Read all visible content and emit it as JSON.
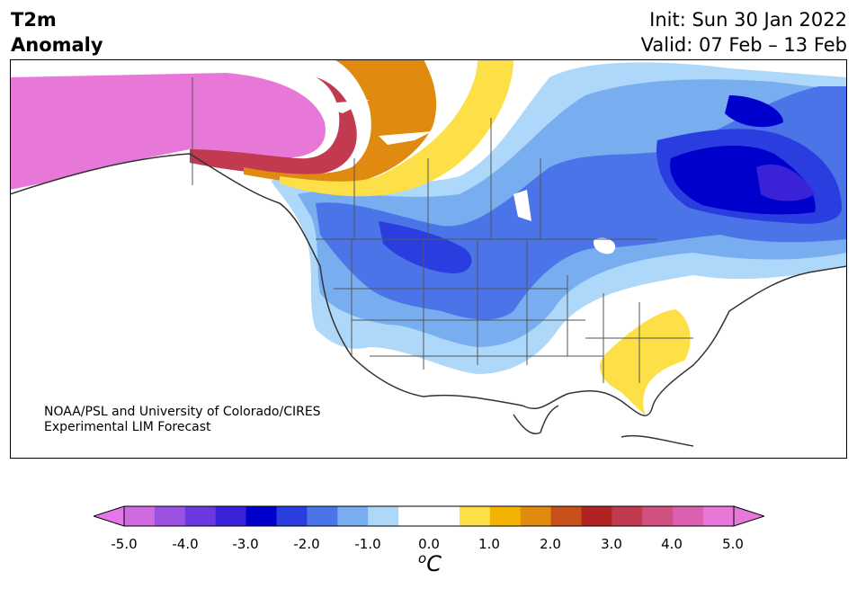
{
  "title": {
    "line1": "T2m",
    "line2": "Anomaly"
  },
  "dates": {
    "init": "Init: Sun 30 Jan 2022",
    "valid": "Valid: 07 Feb – 13 Feb"
  },
  "credit": {
    "line1": "NOAA/PSL and University of Colorado/CIRES",
    "line2": "Experimental LIM Forecast"
  },
  "colorbar": {
    "ticks": [
      "-5.0",
      "-4.0",
      "-3.0",
      "-2.0",
      "-1.0",
      "0.0",
      "1.0",
      "2.0",
      "3.0",
      "4.0",
      "5.0"
    ],
    "unit_base": "C",
    "unit_sup": "o",
    "colors": [
      "#d06ae0",
      "#9b52e0",
      "#6a3ae0",
      "#3a22d8",
      "#0000cc",
      "#2a3ee0",
      "#4a74e8",
      "#78aef0",
      "#aed8fa",
      "#ffffff",
      "#ffffff",
      "#fde047",
      "#f2b400",
      "#e08a10",
      "#c8501a",
      "#b22222",
      "#c23a50",
      "#d05080",
      "#dc60b0",
      "#e878d8"
    ],
    "extend_min_color": "#e478e8",
    "extend_max_color": "#e878d8"
  },
  "map_regions": {
    "alaska": "#e878d8",
    "yukon_warm": "#c23a50",
    "warm_orange": "#e08a10",
    "warm_yellow": "#fde047",
    "cold_light": "#aed8fa",
    "cold_mid": "#78aef0",
    "cold_strong": "#4a74e8",
    "cold_deep": "#2a3ee0",
    "cold_core": "#0000cc",
    "southeast_warm": "#fde047"
  }
}
